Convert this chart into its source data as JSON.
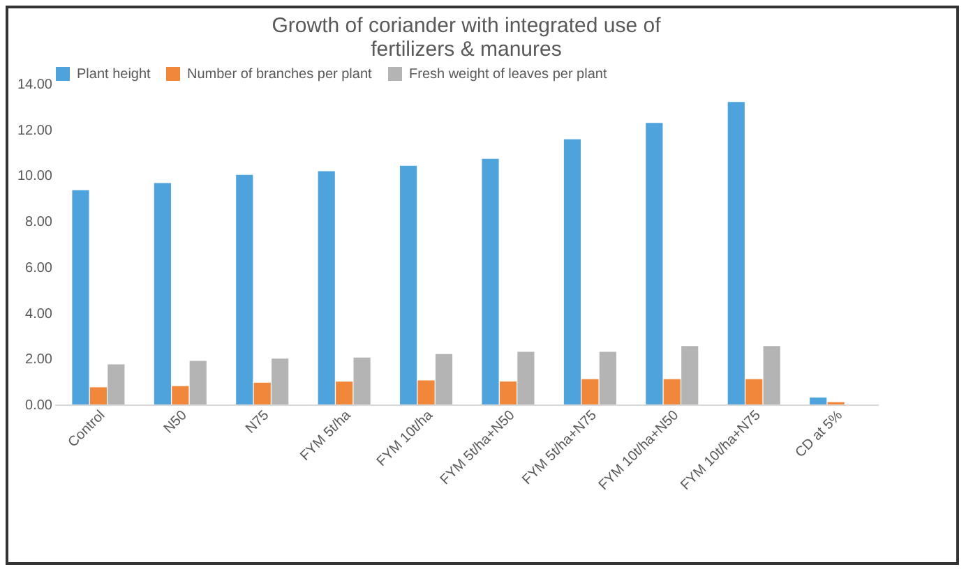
{
  "chart_data": {
    "type": "bar",
    "title": [
      "Growth of coriander with integrated use of",
      "fertilizers & manures"
    ],
    "categories": [
      "Control",
      "N50",
      "N75",
      "FYM 5t/ha",
      "FYM 10t/ha",
      "FYM 5t/ha+N50",
      "FYM 5t/ha+N75",
      "FYM 10t/ha+N50",
      "FYM 10t/ha+N75",
      "CD at 5%"
    ],
    "series": [
      {
        "name": "Plant height",
        "color": "#4ea3dc",
        "values": [
          9.35,
          9.66,
          10.02,
          10.18,
          10.42,
          10.72,
          11.57,
          12.29,
          13.2,
          0.3
        ]
      },
      {
        "name": "Number of branches per plant",
        "color": "#f0873a",
        "values": [
          0.75,
          0.8,
          0.95,
          1.0,
          1.05,
          1.0,
          1.1,
          1.1,
          1.1,
          0.1
        ]
      },
      {
        "name": "Fresh weight of leaves per plant",
        "color": "#b4b4b4",
        "values": [
          1.75,
          1.9,
          2.0,
          2.05,
          2.2,
          2.3,
          2.3,
          2.55,
          2.55,
          null
        ]
      }
    ],
    "ylim": [
      0,
      14
    ],
    "yticks": [
      {
        "value": 0,
        "label": "0.00"
      },
      {
        "value": 2,
        "label": "2.00"
      },
      {
        "value": 4,
        "label": "4.00"
      },
      {
        "value": 6,
        "label": "6.00"
      },
      {
        "value": 8,
        "label": "8.00"
      },
      {
        "value": 10,
        "label": "10.00"
      },
      {
        "value": 12,
        "label": "12.00"
      },
      {
        "value": 14,
        "label": "14.00"
      }
    ],
    "legend": "top",
    "grid": false
  }
}
